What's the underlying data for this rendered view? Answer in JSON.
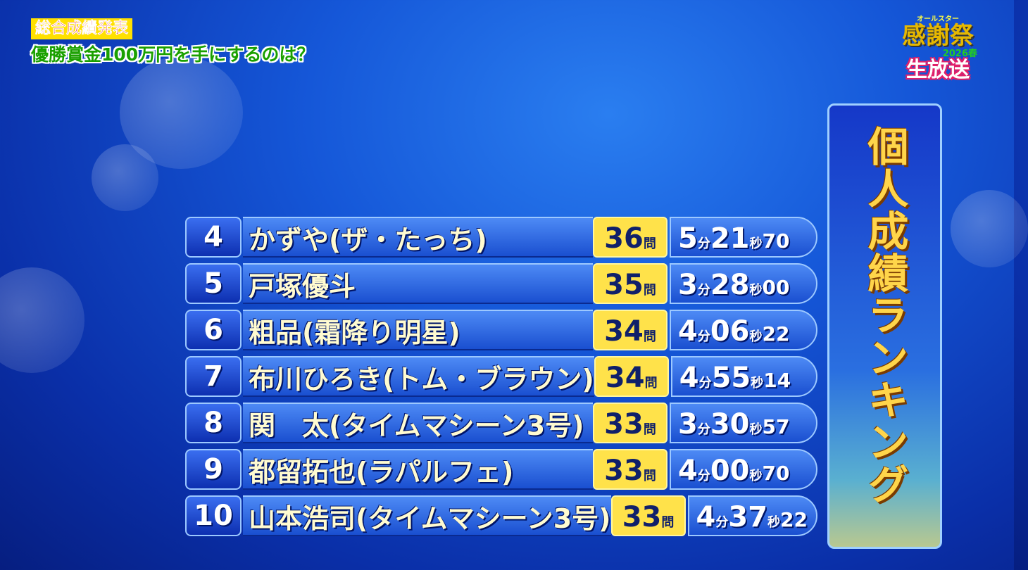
{
  "header": {
    "tag": "総合成績発表",
    "subtitle": "優勝賞金100万円を手にするのは？"
  },
  "logo": {
    "top": "オールスター",
    "main": "感謝祭",
    "year": "2026春",
    "live": "生放送"
  },
  "panel": {
    "title": "個人成績ランキング"
  },
  "units": {
    "questions": "問",
    "minutes": "分",
    "seconds": "秒"
  },
  "rows": [
    {
      "rank": "4",
      "name": "かずや(ザ・たっち)",
      "score": "36",
      "min": "5",
      "sec": "21",
      "frac": "70"
    },
    {
      "rank": "5",
      "name": "戸塚優斗",
      "score": "35",
      "min": "3",
      "sec": "28",
      "frac": "00"
    },
    {
      "rank": "6",
      "name": "粗品(霜降り明星)",
      "score": "34",
      "min": "4",
      "sec": "06",
      "frac": "22"
    },
    {
      "rank": "7",
      "name": "布川ひろき(トム・ブラウン)",
      "score": "34",
      "min": "4",
      "sec": "55",
      "frac": "14"
    },
    {
      "rank": "8",
      "name": "関　太(タイムマシーン3号)",
      "score": "33",
      "min": "3",
      "sec": "30",
      "frac": "57"
    },
    {
      "rank": "9",
      "name": "都留拓也(ラパルフェ)",
      "score": "33",
      "min": "4",
      "sec": "00",
      "frac": "70"
    },
    {
      "rank": "10",
      "name": "山本浩司(タイムマシーン3号)",
      "score": "33",
      "min": "4",
      "sec": "37",
      "frac": "22"
    }
  ]
}
